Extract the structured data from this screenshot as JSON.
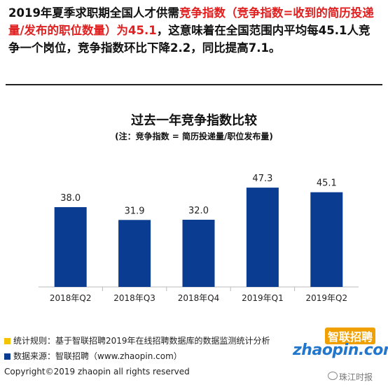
{
  "intro": {
    "part1": "2019年夏季求职期全国人才供需",
    "part2_red": "竞争指数（竞争指数=收到的简历投递量/发布的职位数量）为45.1",
    "part3": "，这意味着在全国范围内平均每45.1人竞争一个岗位，竞争指数环比下降2.2，同比提高7.1。"
  },
  "chart_data": {
    "type": "bar",
    "title": "过去一年竞争指数比较",
    "subtitle": "(注：竞争指数 = 简历投递量/职位发布量)",
    "categories": [
      "2018年Q2",
      "2018年Q3",
      "2018年Q4",
      "2019年Q1",
      "2019年Q2"
    ],
    "values": [
      38.0,
      31.9,
      32.0,
      47.3,
      45.1
    ],
    "value_labels": [
      "38.0",
      "31.9",
      "32.0",
      "47.3",
      "45.1"
    ],
    "ylim": [
      0,
      50
    ],
    "grid": false,
    "bar_color": "#0a3d91"
  },
  "footer": {
    "line1": "统计规则：基于智联招聘2019年在线招聘数据库的数据监测统计分析",
    "line2": "数据来源：智联招聘（www.zhaopin.com）",
    "line3": "Copyright©2019 zhaopin all rights reserved",
    "marker1_color": "#f5c400",
    "marker2_color": "#0a3d91"
  },
  "logo": {
    "cn": "智联招聘",
    "en": "zhaopin.com"
  },
  "watermark": "珠江时报"
}
